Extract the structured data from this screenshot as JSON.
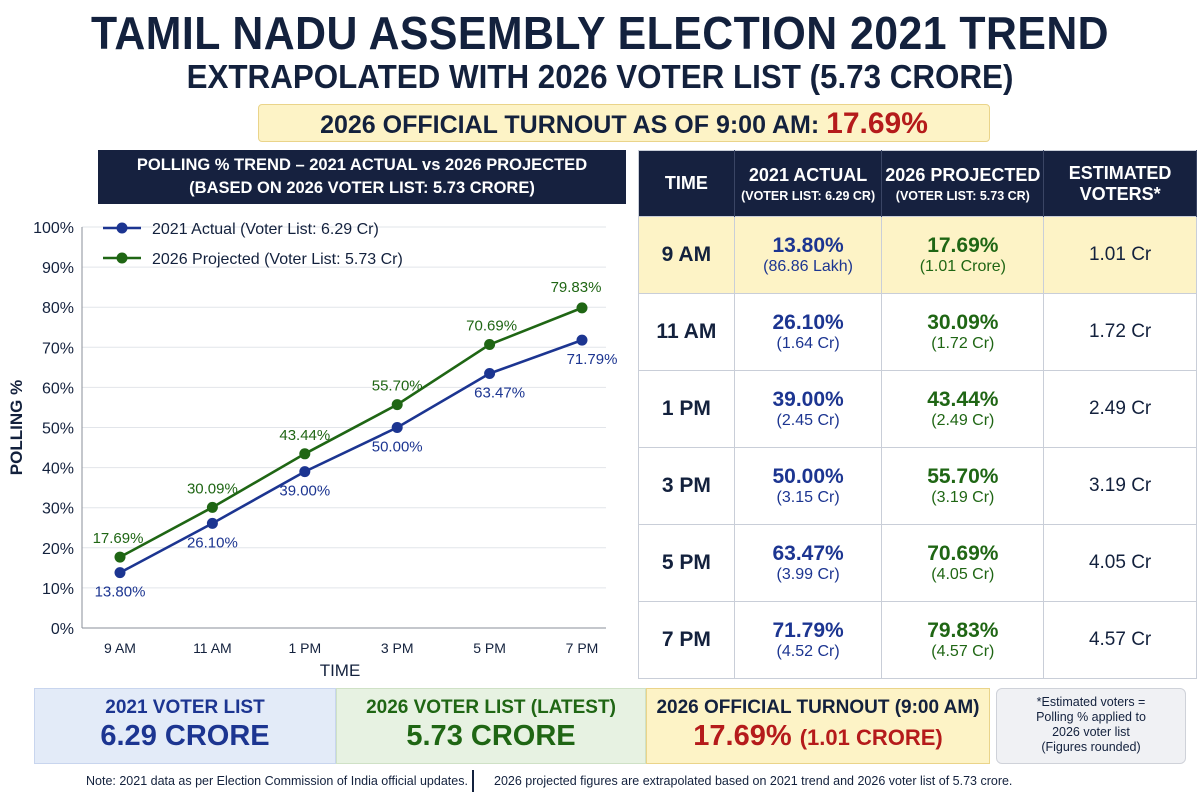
{
  "header": {
    "title": "TAMIL NADU ASSEMBLY ELECTION 2021 TREND",
    "subtitle": "EXTRAPOLATED WITH 2026 VOTER LIST (5.73 CRORE)",
    "turnout_label": "2026 OFFICIAL TURNOUT AS OF 9:00 AM:",
    "turnout_value": "17.69%"
  },
  "chart_header": {
    "line1": "POLLING % TREND – 2021 ACTUAL vs 2026 PROJECTED",
    "line2": "(BASED ON 2026 VOTER LIST: 5.73 CRORE)"
  },
  "chart_data": {
    "type": "line",
    "title": "POLLING % TREND – 2021 ACTUAL vs 2026 PROJECTED",
    "xlabel": "TIME",
    "ylabel": "POLLING %",
    "ylim": [
      0,
      100
    ],
    "yticks": [
      "0%",
      "10%",
      "20%",
      "30%",
      "40%",
      "50%",
      "60%",
      "70%",
      "80%",
      "90%",
      "100%"
    ],
    "categories": [
      "9 AM",
      "11 AM",
      "1 PM",
      "3 PM",
      "5 PM",
      "7 PM"
    ],
    "legend_position": "top-left",
    "series": [
      {
        "name": "2021 Actual (Voter List: 6.29 Cr)",
        "color": "#1c3591",
        "values": [
          13.8,
          26.1,
          39.0,
          50.0,
          63.47,
          71.79
        ],
        "labels": [
          "13.80%",
          "26.10%",
          "39.00%",
          "50.00%",
          "63.47%",
          "71.79%"
        ]
      },
      {
        "name": "2026 Projected (Voter List: 5.73 Cr)",
        "color": "#1f6614",
        "values": [
          17.69,
          30.09,
          43.44,
          55.7,
          70.69,
          79.83
        ],
        "labels": [
          "17.69%",
          "30.09%",
          "43.44%",
          "55.70%",
          "70.69%",
          "79.83%"
        ]
      }
    ]
  },
  "table": {
    "headers": [
      {
        "main": "TIME",
        "sub": ""
      },
      {
        "main": "2021 ACTUAL",
        "sub": "(VOTER LIST: 6.29 CR)"
      },
      {
        "main": "2026 PROJECTED",
        "sub": "(VOTER LIST: 5.73 CR)"
      },
      {
        "main": "ESTIMATED",
        "main2": "VOTERS*",
        "sub": ""
      }
    ],
    "rows": [
      {
        "time": "9 AM",
        "a_pct": "13.80%",
        "a_sub": "(86.86 Lakh)",
        "p_pct": "17.69%",
        "p_sub": "(1.01 Crore)",
        "est": "1.01 Cr"
      },
      {
        "time": "11 AM",
        "a_pct": "26.10%",
        "a_sub": "(1.64 Cr)",
        "p_pct": "30.09%",
        "p_sub": "(1.72 Cr)",
        "est": "1.72 Cr"
      },
      {
        "time": "1 PM",
        "a_pct": "39.00%",
        "a_sub": "(2.45 Cr)",
        "p_pct": "43.44%",
        "p_sub": "(2.49 Cr)",
        "est": "2.49 Cr"
      },
      {
        "time": "3 PM",
        "a_pct": "50.00%",
        "a_sub": "(3.15 Cr)",
        "p_pct": "55.70%",
        "p_sub": "(3.19 Cr)",
        "est": "3.19 Cr"
      },
      {
        "time": "5 PM",
        "a_pct": "63.47%",
        "a_sub": "(3.99 Cr)",
        "p_pct": "70.69%",
        "p_sub": "(4.05 Cr)",
        "est": "4.05 Cr"
      },
      {
        "time": "7 PM",
        "a_pct": "71.79%",
        "a_sub": "(4.52 Cr)",
        "p_pct": "79.83%",
        "p_sub": "(4.57 Cr)",
        "est": "4.57 Cr"
      }
    ]
  },
  "cards": {
    "c1_label": "2021 VOTER LIST",
    "c1_value": "6.29 CRORE",
    "c2_label": "2026 VOTER LIST (LATEST)",
    "c2_value": "5.73 CRORE",
    "c3_label": "2026 OFFICIAL TURNOUT (9:00 AM)",
    "c3_value": "17.69%",
    "c3_value_small": "(1.01 CRORE)",
    "note_lines": [
      "*Estimated voters =",
      "Polling % applied to",
      "2026 voter list",
      "(Figures rounded)"
    ]
  },
  "footer": {
    "note1": "Note: 2021 data as per Election Commission of India official updates.",
    "note2": "2026 projected figures are extrapolated based on 2021 trend and 2026 voter list of 5.73 crore."
  },
  "colors": {
    "navy": "#16213f",
    "blue": "#1c3591",
    "green": "#1f6614",
    "red": "#b51b1b",
    "highlight": "#fdf3c6"
  }
}
